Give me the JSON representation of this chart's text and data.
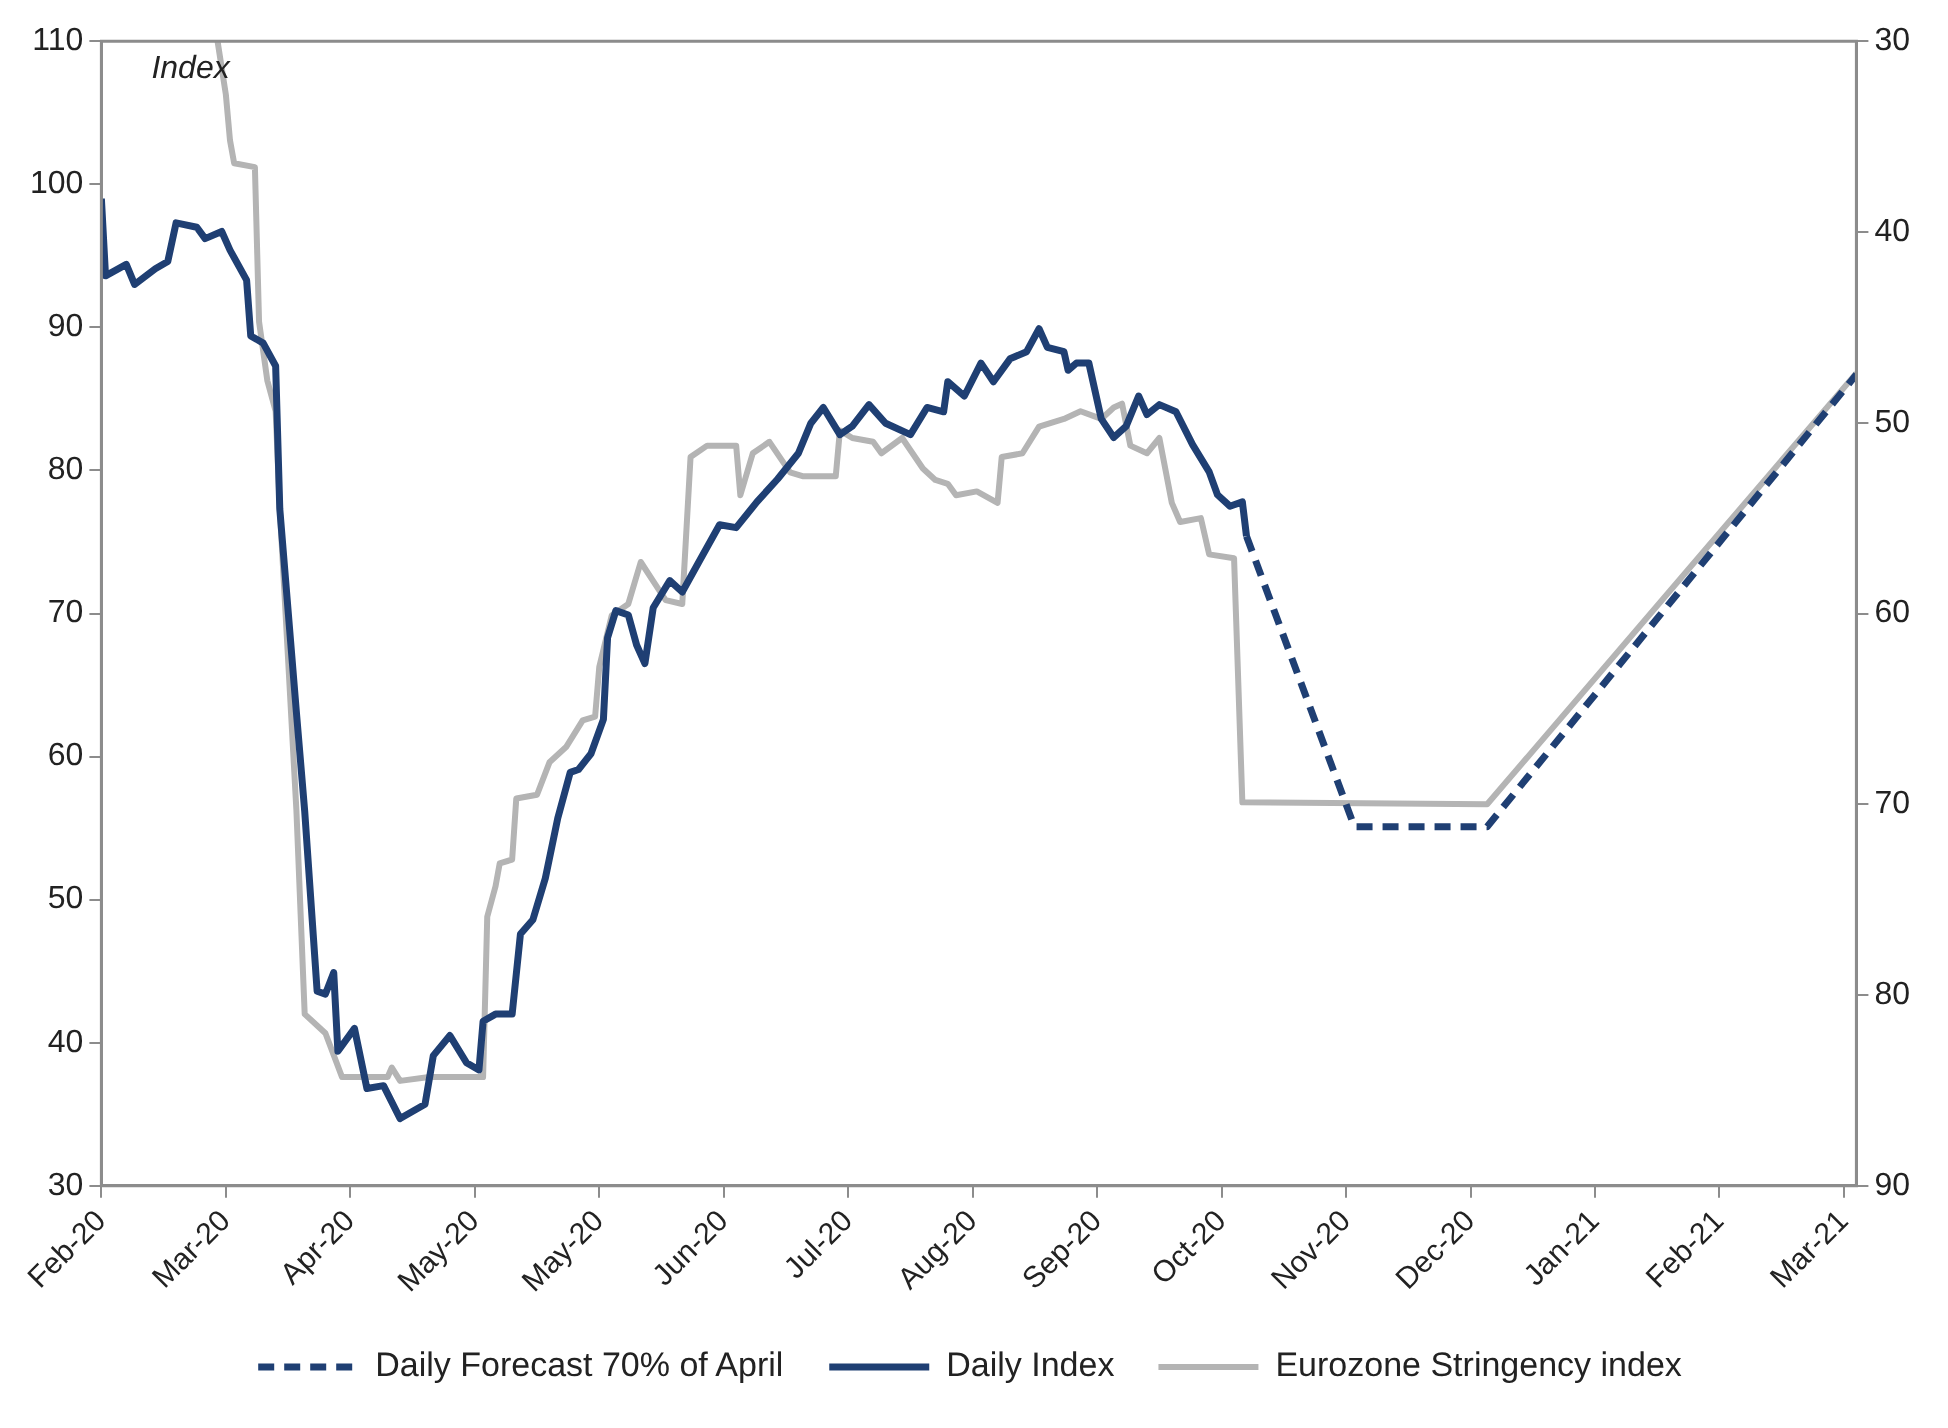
{
  "chart_data": {
    "type": "line",
    "ylabel": "Index",
    "xlim": [
      "2020-02-01",
      "2021-03-30"
    ],
    "xticks": [
      {
        "value": "2020-02-01",
        "label": "Feb-20"
      },
      {
        "value": "2020-03-02",
        "label": "Mar-20"
      },
      {
        "value": "2020-04-01",
        "label": "Apr-20"
      },
      {
        "value": "2020-05-01",
        "label": "May-20"
      },
      {
        "value": "2020-05-31",
        "label": "May-20"
      },
      {
        "value": "2020-06-30",
        "label": "Jun-20"
      },
      {
        "value": "2020-07-30",
        "label": "Jul-20"
      },
      {
        "value": "2020-08-29",
        "label": "Aug-20"
      },
      {
        "value": "2020-09-28",
        "label": "Sep-20"
      },
      {
        "value": "2020-10-28",
        "label": "Oct-20"
      },
      {
        "value": "2020-11-27",
        "label": "Nov-20"
      },
      {
        "value": "2020-12-27",
        "label": "Dec-20"
      },
      {
        "value": "2021-01-26",
        "label": "Jan-21"
      },
      {
        "value": "2021-02-25",
        "label": "Feb-21"
      },
      {
        "value": "2021-03-27",
        "label": "Mar-21"
      }
    ],
    "ylim": [
      30,
      110
    ],
    "yticks": [
      30,
      40,
      50,
      60,
      70,
      80,
      90,
      100,
      110
    ],
    "y2lim": [
      90,
      30
    ],
    "y2ticks": [
      30,
      40,
      50,
      60,
      70,
      80,
      90
    ],
    "grid": false,
    "legend": "bottom",
    "marker": "none",
    "series": [
      {
        "name": "Daily Forecast 70% of April",
        "color": "#1f3f73",
        "line_style": "dashed",
        "x": [
          "2020-11-03",
          "2020-11-29",
          "2020-12-31",
          "2021-03-30"
        ],
        "values": [
          75.4,
          55.1,
          55.1,
          86.7
        ]
      },
      {
        "name": "Daily Index",
        "color": "#1f3f73",
        "line_style": "solid",
        "x": [
          "2020-02-01",
          "2020-02-02",
          "2020-02-07",
          "2020-02-09",
          "2020-02-14",
          "2020-02-17",
          "2020-02-19",
          "2020-02-24",
          "2020-02-26",
          "2020-03-01",
          "2020-03-03",
          "2020-03-07",
          "2020-03-08",
          "2020-03-11",
          "2020-03-14",
          "2020-03-15",
          "2020-03-19",
          "2020-03-21",
          "2020-03-24",
          "2020-03-26",
          "2020-03-28",
          "2020-03-29",
          "2020-04-02",
          "2020-04-05",
          "2020-04-09",
          "2020-04-13",
          "2020-04-19",
          "2020-04-21",
          "2020-04-25",
          "2020-04-29",
          "2020-05-02",
          "2020-05-03",
          "2020-05-06",
          "2020-05-10",
          "2020-05-12",
          "2020-05-15",
          "2020-05-18",
          "2020-05-21",
          "2020-05-24",
          "2020-05-26",
          "2020-05-29",
          "2020-06-01",
          "2020-06-02",
          "2020-06-04",
          "2020-06-07",
          "2020-06-09",
          "2020-06-11",
          "2020-06-13",
          "2020-06-17",
          "2020-06-20",
          "2020-06-24",
          "2020-06-29",
          "2020-07-03",
          "2020-07-08",
          "2020-07-13",
          "2020-07-18",
          "2020-07-21",
          "2020-07-24",
          "2020-07-28",
          "2020-07-31",
          "2020-08-04",
          "2020-08-08",
          "2020-08-14",
          "2020-08-18",
          "2020-08-22",
          "2020-08-23",
          "2020-08-27",
          "2020-08-31",
          "2020-09-03",
          "2020-09-07",
          "2020-09-11",
          "2020-09-14",
          "2020-09-16",
          "2020-09-20",
          "2020-09-21",
          "2020-09-23",
          "2020-09-26",
          "2020-09-29",
          "2020-10-02",
          "2020-10-05",
          "2020-10-08",
          "2020-10-10",
          "2020-10-13",
          "2020-10-17",
          "2020-10-21",
          "2020-10-25",
          "2020-10-27",
          "2020-10-30",
          "2020-11-02",
          "2020-11-03"
        ],
        "values": [
          99,
          93.6,
          94.4,
          93,
          94.1,
          94.6,
          97.3,
          97,
          96.2,
          96.7,
          95.4,
          93.3,
          89.4,
          88.9,
          87.3,
          77.3,
          63.1,
          56.2,
          43.6,
          43.4,
          44.9,
          39.4,
          41,
          36.8,
          37,
          34.7,
          35.7,
          39.1,
          40.5,
          38.6,
          38.1,
          41.5,
          42,
          42,
          47.6,
          48.6,
          51.5,
          55.7,
          58.9,
          59.1,
          60.2,
          62.6,
          68.3,
          70.2,
          69.9,
          67.8,
          66.5,
          70.4,
          72.3,
          71.5,
          73.6,
          76.2,
          76,
          77.8,
          79.4,
          81.2,
          83.3,
          84.4,
          82.5,
          83.1,
          84.6,
          83.3,
          82.5,
          84.4,
          84.1,
          86.2,
          85.2,
          87.5,
          86.2,
          87.8,
          88.3,
          89.9,
          88.6,
          88.3,
          87,
          87.5,
          87.5,
          83.6,
          82.3,
          83.1,
          85.2,
          83.9,
          84.6,
          84.1,
          81.8,
          79.9,
          78.3,
          77.5,
          77.8,
          75.4
        ]
      },
      {
        "name": "Eurozone Stringency index",
        "color": "#b4b4b4",
        "line_style": "solid",
        "axis": "y2",
        "x": [
          "2020-02-29",
          "2020-03-02",
          "2020-03-03",
          "2020-03-04",
          "2020-03-09",
          "2020-03-10",
          "2020-03-12",
          "2020-03-14",
          "2020-03-15",
          "2020-03-17",
          "2020-03-19",
          "2020-03-21",
          "2020-03-26",
          "2020-03-30",
          "2020-04-10",
          "2020-04-11",
          "2020-04-13",
          "2020-04-20",
          "2020-05-03",
          "2020-05-04",
          "2020-05-06",
          "2020-05-07",
          "2020-05-10",
          "2020-05-11",
          "2020-05-16",
          "2020-05-19",
          "2020-05-23",
          "2020-05-27",
          "2020-05-30",
          "2020-05-31",
          "2020-06-03",
          "2020-06-07",
          "2020-06-10",
          "2020-06-13",
          "2020-06-16",
          "2020-06-20",
          "2020-06-22",
          "2020-06-26",
          "2020-07-03",
          "2020-07-04",
          "2020-07-07",
          "2020-07-11",
          "2020-07-16",
          "2020-07-19",
          "2020-07-27",
          "2020-07-28",
          "2020-07-31",
          "2020-08-05",
          "2020-08-07",
          "2020-08-12",
          "2020-08-17",
          "2020-08-20",
          "2020-08-23",
          "2020-08-25",
          "2020-08-30",
          "2020-09-04",
          "2020-09-05",
          "2020-09-10",
          "2020-09-14",
          "2020-09-20",
          "2020-09-24",
          "2020-09-29",
          "2020-10-02",
          "2020-10-04",
          "2020-10-06",
          "2020-10-10",
          "2020-10-13",
          "2020-10-16",
          "2020-10-18",
          "2020-10-23",
          "2020-10-25",
          "2020-10-31",
          "2020-11-02",
          "2020-12-31",
          "2021-03-30"
        ],
        "values": [
          30,
          32.8,
          35.2,
          36.4,
          36.6,
          44.7,
          47.8,
          49.4,
          54.5,
          62.4,
          70.3,
          81,
          82,
          84.3,
          84.3,
          83.8,
          84.5,
          84.3,
          84.3,
          75.9,
          74.3,
          73.1,
          72.9,
          69.7,
          69.5,
          67.8,
          67,
          65.6,
          65.4,
          62.8,
          60.1,
          59.5,
          57.3,
          58.3,
          59.3,
          59.5,
          51.8,
          51.2,
          51.2,
          53.8,
          51.6,
          51,
          52.6,
          52.8,
          52.8,
          50.4,
          50.8,
          51,
          51.6,
          50.8,
          52.4,
          53,
          53.2,
          53.8,
          53.6,
          54.2,
          51.8,
          51.6,
          50.2,
          49.8,
          49.4,
          49.8,
          49.2,
          49,
          51.2,
          51.6,
          50.8,
          54.2,
          55.2,
          55,
          56.9,
          57.1,
          69.9,
          70,
          47.4
        ]
      }
    ]
  }
}
